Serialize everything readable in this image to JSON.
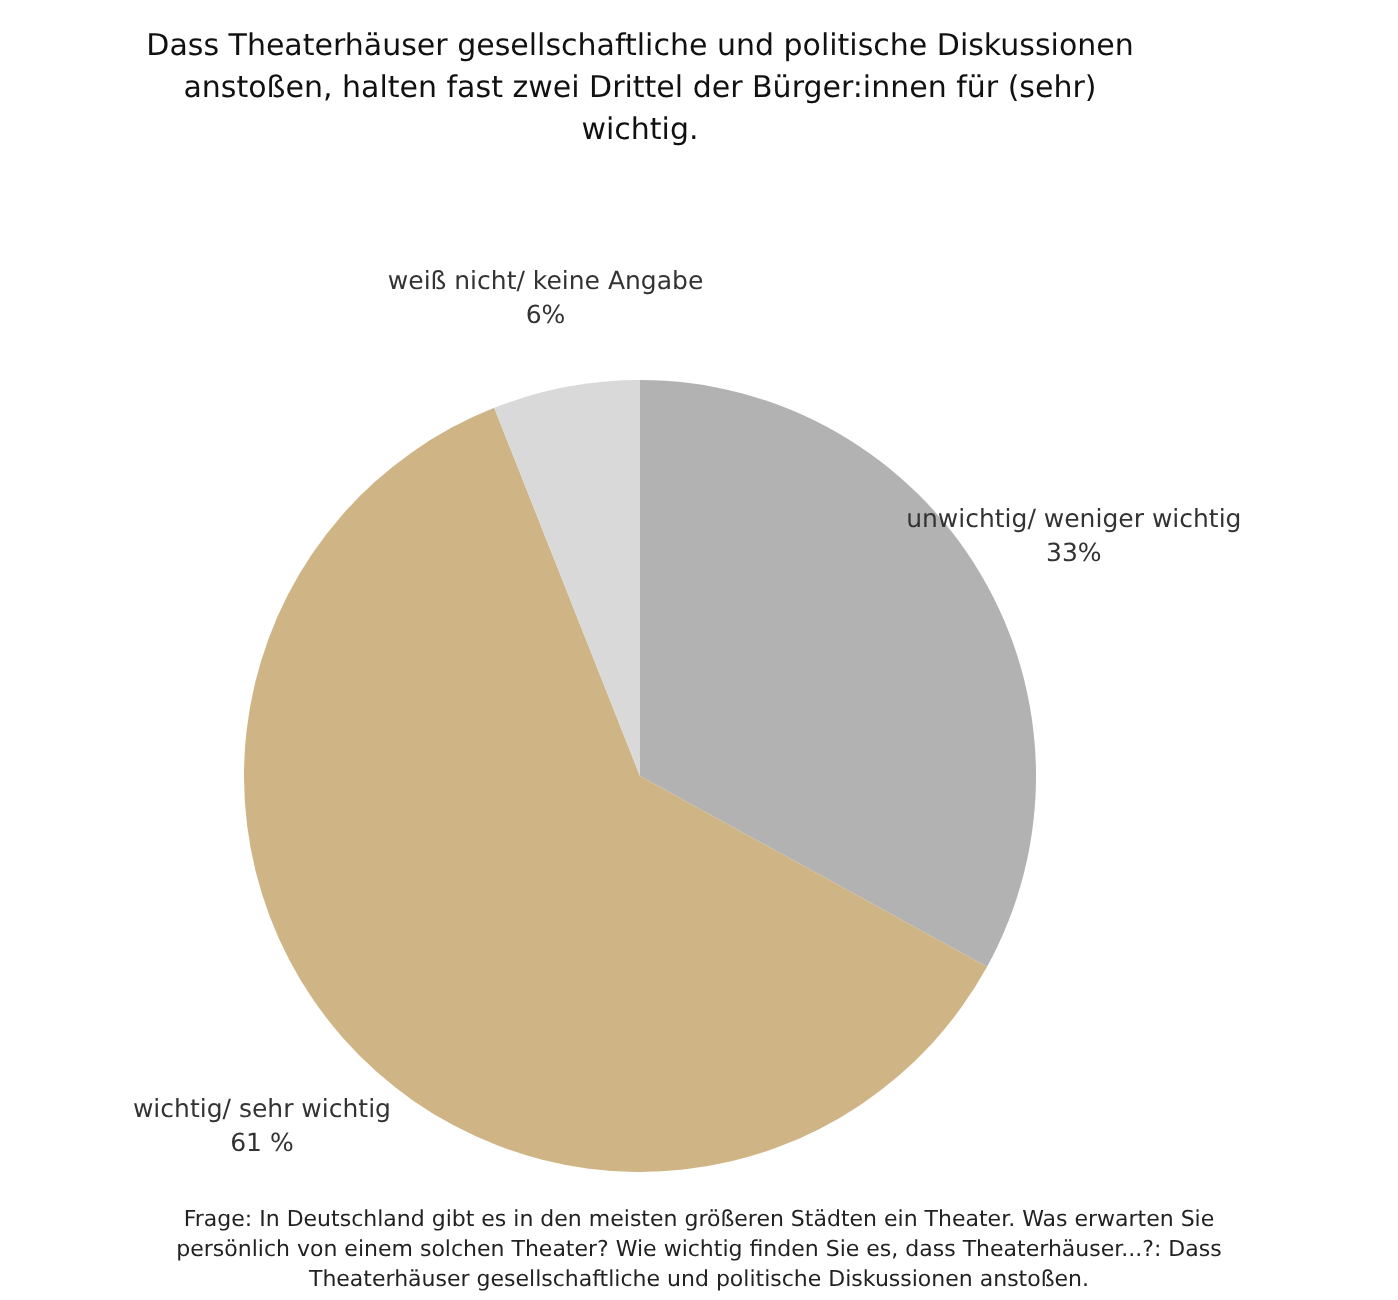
{
  "chart_data": {
    "type": "pie",
    "title": "Dass Theaterhäuser gesellschaftliche und politische Diskussionen anstoßen, halten fast zwei Drittel der Bürger:innen für (sehr) wichtig.",
    "categories": [
      "unwichtig/ weniger wichtig",
      "wichtig/ sehr wichtig",
      "weiß nicht/ keine Angabe"
    ],
    "values": [
      33,
      61,
      6
    ],
    "colors": [
      "#b2b2b2",
      "#cfb486",
      "#d9d9d9"
    ],
    "value_labels": [
      "33%",
      "61 %",
      "6%"
    ],
    "annotations": [
      "Frage: In Deutschland gibt es in den meisten größeren Städten ein Theater. Was erwarten Sie persönlich von einem solchen Theater? Wie wichtig finden Sie es,  dass Theaterhäuser...?: Dass Theaterhäuser gesellschaftliche und politische Diskussionen anstoßen."
    ]
  }
}
